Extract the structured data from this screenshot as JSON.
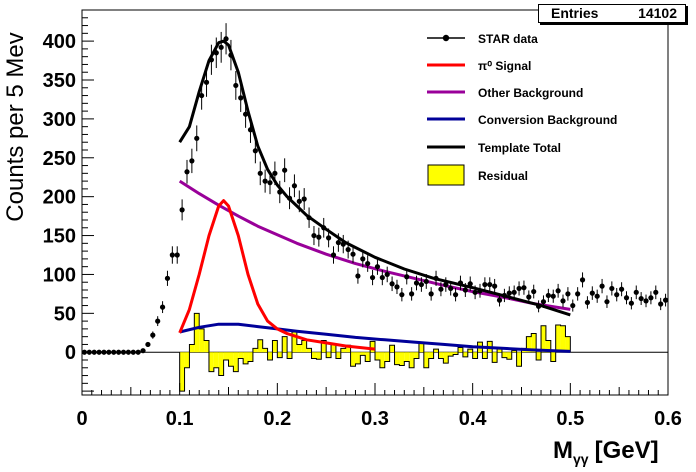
{
  "stats_box": {
    "key": "Entries",
    "value": "14102"
  },
  "chart_data": {
    "type": "scatter",
    "title": "",
    "xlabel": "M",
    "xlabel_subscript": "γγ",
    "xlabel_unit": "[GeV]",
    "ylabel": "Counts per 5 Mev",
    "xlim": [
      0,
      0.6
    ],
    "ylim": [
      -55,
      440
    ],
    "x_ticks": [
      "0",
      "0.1",
      "0.2",
      "0.3",
      "0.4",
      "0.5",
      "0.6"
    ],
    "y_ticks": [
      "0",
      "50",
      "100",
      "150",
      "200",
      "250",
      "300",
      "350",
      "400"
    ],
    "legend_position": "top-right",
    "legend": [
      {
        "label": "STAR data",
        "type": "marker",
        "color": "#000000"
      },
      {
        "label": "π⁰ Signal",
        "type": "line",
        "color": "#ff0000"
      },
      {
        "label": "Other Background",
        "type": "line",
        "color": "#990099"
      },
      {
        "label": "Conversion Background",
        "type": "line",
        "color": "#000099"
      },
      {
        "label": "Template Total",
        "type": "line",
        "color": "#000000"
      },
      {
        "label": "Residual",
        "type": "fill",
        "color": "#ffff00"
      }
    ],
    "series": [
      {
        "name": "STAR data",
        "type": "scatter",
        "color": "#000000",
        "x": [
          0.0025,
          0.0075,
          0.0125,
          0.0175,
          0.0225,
          0.0275,
          0.0325,
          0.0375,
          0.0425,
          0.0475,
          0.0525,
          0.0575,
          0.0625,
          0.0675,
          0.0725,
          0.0775,
          0.0825,
          0.0875,
          0.0925,
          0.0975,
          0.1025,
          0.1075,
          0.1125,
          0.1175,
          0.1225,
          0.1275,
          0.1325,
          0.1375,
          0.1425,
          0.1475,
          0.1525,
          0.1575,
          0.1625,
          0.1675,
          0.1725,
          0.1775,
          0.1825,
          0.1875,
          0.1925,
          0.1975,
          0.2025,
          0.2075,
          0.2125,
          0.2175,
          0.2225,
          0.2275,
          0.2325,
          0.2375,
          0.2425,
          0.2475,
          0.2525,
          0.2575,
          0.2625,
          0.2675,
          0.2725,
          0.2775,
          0.2825,
          0.2875,
          0.2925,
          0.2975,
          0.3025,
          0.3075,
          0.3125,
          0.3175,
          0.3225,
          0.3275,
          0.3325,
          0.3375,
          0.3425,
          0.3475,
          0.3525,
          0.3575,
          0.3625,
          0.3675,
          0.3725,
          0.3775,
          0.3825,
          0.3875,
          0.3925,
          0.3975,
          0.4025,
          0.4075,
          0.4125,
          0.4175,
          0.4225,
          0.4275,
          0.4325,
          0.4375,
          0.4425,
          0.4475,
          0.4525,
          0.4575,
          0.4625,
          0.4675,
          0.4725,
          0.4775,
          0.4825,
          0.4875,
          0.4925,
          0.4975,
          0.5025,
          0.5075,
          0.5125,
          0.5175,
          0.5225,
          0.5275,
          0.5325,
          0.5375,
          0.5425,
          0.5475,
          0.5525,
          0.5575,
          0.5625,
          0.5675,
          0.5725,
          0.5775,
          0.5825,
          0.5875,
          0.5925,
          0.5975
        ],
        "y": [
          0,
          0,
          0,
          0,
          0,
          0,
          0,
          0,
          0,
          0,
          0,
          0,
          2,
          10,
          22,
          40,
          58,
          95,
          125,
          125,
          183,
          232,
          246,
          275,
          330,
          347,
          376,
          385,
          392,
          403,
          382,
          343,
          327,
          306,
          286,
          259,
          230,
          220,
          218,
          230,
          206,
          234,
          198,
          214,
          194,
          197,
          173,
          150,
          148,
          160,
          147,
          125,
          141,
          139,
          132,
          126,
          98,
          120,
          114,
          96,
          110,
          96,
          100,
          88,
          84,
          74,
          97,
          75,
          89,
          87,
          91,
          75,
          95,
          81,
          87,
          82,
          74,
          89,
          80,
          88,
          77,
          79,
          87,
          87,
          85,
          67,
          73,
          76,
          77,
          82,
          83,
          71,
          78,
          59,
          65,
          73,
          72,
          79,
          66,
          75,
          60,
          75,
          93,
          64,
          76,
          72,
          85,
          65,
          82,
          74,
          81,
          70,
          63,
          77,
          69,
          66,
          70,
          77,
          62,
          67
        ]
      },
      {
        "name": "Template Total",
        "type": "line",
        "color": "#000000",
        "x": [
          0.1,
          0.11,
          0.12,
          0.13,
          0.14,
          0.145,
          0.15,
          0.16,
          0.17,
          0.18,
          0.19,
          0.2,
          0.21,
          0.22,
          0.23,
          0.25,
          0.27,
          0.3,
          0.33,
          0.36,
          0.4,
          0.44,
          0.47,
          0.5
        ],
        "y": [
          270,
          290,
          335,
          375,
          398,
          400,
          395,
          360,
          310,
          265,
          235,
          215,
          200,
          188,
          176,
          158,
          141,
          122,
          107,
          95,
          83,
          70,
          60,
          48
        ]
      },
      {
        "name": "π⁰ Signal",
        "type": "line",
        "color": "#ff0000",
        "x": [
          0.1,
          0.11,
          0.12,
          0.13,
          0.14,
          0.145,
          0.15,
          0.16,
          0.17,
          0.18,
          0.19,
          0.2,
          0.21,
          0.22,
          0.23,
          0.25,
          0.27,
          0.3
        ],
        "y": [
          25,
          55,
          100,
          150,
          188,
          195,
          188,
          150,
          100,
          62,
          40,
          30,
          24,
          20,
          16,
          12,
          8,
          4
        ]
      },
      {
        "name": "Other Background",
        "type": "line",
        "color": "#990099",
        "x": [
          0.1,
          0.12,
          0.14,
          0.16,
          0.18,
          0.2,
          0.22,
          0.25,
          0.28,
          0.31,
          0.34,
          0.37,
          0.4,
          0.43,
          0.46,
          0.5
        ],
        "y": [
          220,
          204,
          189,
          175,
          162,
          151,
          140,
          126,
          114,
          104,
          95,
          86,
          78,
          71,
          63,
          55
        ]
      },
      {
        "name": "Conversion Background",
        "type": "line",
        "color": "#000099",
        "x": [
          0.1,
          0.12,
          0.14,
          0.16,
          0.18,
          0.2,
          0.22,
          0.25,
          0.28,
          0.31,
          0.34,
          0.37,
          0.4,
          0.43,
          0.46,
          0.5
        ],
        "y": [
          26,
          32,
          36,
          36,
          33,
          30,
          27,
          23,
          19,
          16,
          13,
          10,
          7,
          5,
          3,
          1
        ]
      },
      {
        "name": "Residual",
        "type": "histogram",
        "color": "#ffff00",
        "bin_width": 0.005,
        "x": [
          0.1025,
          0.1075,
          0.1125,
          0.1175,
          0.1225,
          0.1275,
          0.1325,
          0.1375,
          0.1425,
          0.1475,
          0.1525,
          0.1575,
          0.1625,
          0.1675,
          0.1725,
          0.1775,
          0.1825,
          0.1875,
          0.1925,
          0.1975,
          0.2025,
          0.2075,
          0.2125,
          0.2175,
          0.2225,
          0.2275,
          0.2325,
          0.2375,
          0.2425,
          0.2475,
          0.2525,
          0.2575,
          0.2625,
          0.2675,
          0.2725,
          0.2775,
          0.2825,
          0.2875,
          0.2925,
          0.2975,
          0.3025,
          0.3075,
          0.3125,
          0.3175,
          0.3225,
          0.3275,
          0.3325,
          0.3375,
          0.3425,
          0.3475,
          0.3525,
          0.3575,
          0.3625,
          0.3675,
          0.3725,
          0.3775,
          0.3825,
          0.3875,
          0.3925,
          0.3975,
          0.4025,
          0.4075,
          0.4125,
          0.4175,
          0.4225,
          0.4275,
          0.4325,
          0.4375,
          0.4425,
          0.4475,
          0.4525,
          0.4575,
          0.4625,
          0.4675,
          0.4725,
          0.4775,
          0.4825,
          0.4875,
          0.4925,
          0.4975
        ],
        "y": [
          -50,
          -20,
          10,
          50,
          30,
          15,
          -25,
          -20,
          -30,
          -10,
          -18,
          -25,
          -8,
          -15,
          -12,
          5,
          16,
          5,
          -10,
          15,
          -7,
          20,
          -8,
          26,
          10,
          15,
          5,
          -8,
          -9,
          15,
          -7,
          10,
          -8,
          5,
          9,
          -18,
          -15,
          -4,
          -12,
          14,
          -10,
          -20,
          -12,
          9,
          -16,
          -17,
          -12,
          -20,
          -8,
          12,
          -20,
          -8,
          4,
          -8,
          -14,
          -5,
          -3,
          6,
          -6,
          4,
          -8,
          13,
          -8,
          14,
          -13,
          6,
          -7,
          -9,
          2,
          -18,
          5,
          20,
          24,
          -10,
          34,
          15,
          -12,
          35,
          34,
          20
        ]
      }
    ]
  }
}
